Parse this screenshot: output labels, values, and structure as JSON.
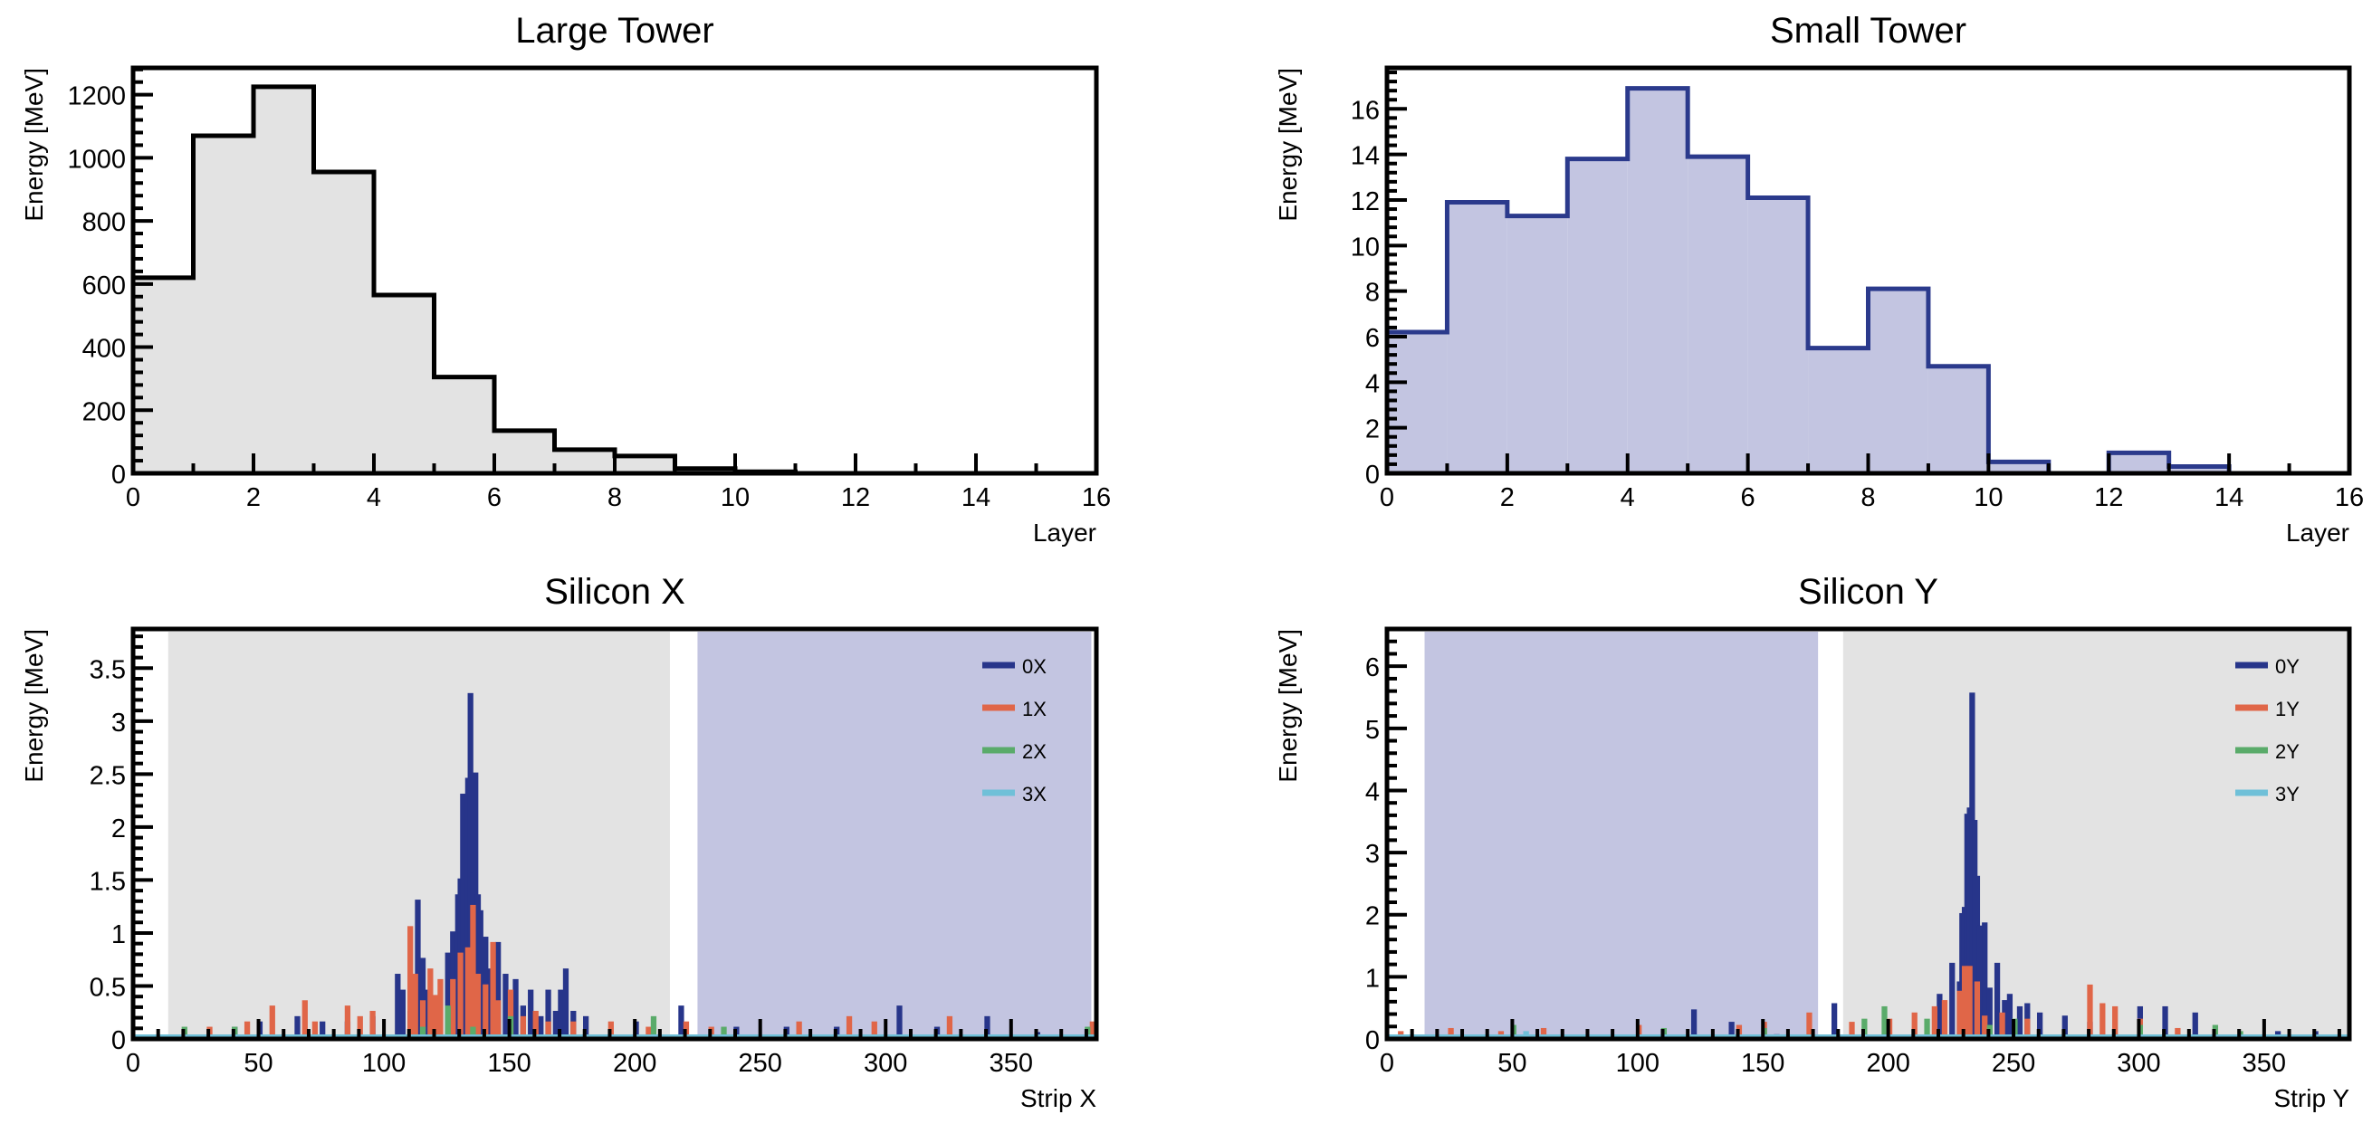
{
  "chart_data": [
    {
      "type": "bar",
      "style": "step-histogram",
      "title": "Large Tower",
      "xlabel": "Layer",
      "ylabel": "Energy [MeV]",
      "xlim": [
        0,
        16
      ],
      "ylim": [
        0,
        1285
      ],
      "xticks": [
        0,
        2,
        4,
        6,
        8,
        10,
        12,
        14,
        16
      ],
      "yticks": [
        0,
        200,
        400,
        600,
        800,
        1000,
        1200
      ],
      "bin_edges_start": [
        0,
        1,
        2,
        3,
        4,
        5,
        6,
        7,
        8,
        9,
        10,
        11,
        12,
        13,
        14,
        15
      ],
      "values": [
        620,
        1070,
        1225,
        955,
        565,
        305,
        135,
        75,
        55,
        15,
        5,
        0,
        0,
        0,
        0,
        0
      ],
      "line_color": "#000000",
      "fill_color": "#e3e3e3"
    },
    {
      "type": "bar",
      "style": "step-histogram",
      "title": "Small Tower",
      "xlabel": "Layer",
      "ylabel": "Energy [MeV]",
      "xlim": [
        0,
        16
      ],
      "ylim": [
        0,
        17.8
      ],
      "xticks": [
        0,
        2,
        4,
        6,
        8,
        10,
        12,
        14,
        16
      ],
      "yticks": [
        0,
        2,
        4,
        6,
        8,
        10,
        12,
        14,
        16
      ],
      "bin_edges_start": [
        0,
        1,
        2,
        3,
        4,
        5,
        6,
        7,
        8,
        9,
        10,
        11,
        12,
        13,
        14,
        15
      ],
      "values": [
        6.2,
        11.9,
        11.3,
        13.8,
        16.9,
        13.9,
        12.1,
        5.5,
        8.1,
        4.7,
        0.5,
        0,
        0.9,
        0.3,
        0,
        0
      ],
      "line_color": "#2b3a8c",
      "fill_color": "#c3c5e1"
    },
    {
      "type": "bar",
      "style": "step-histogram-multi",
      "title": "Silicon X",
      "xlabel": "Strip X",
      "ylabel": "Energy [MeV]",
      "xlim": [
        0,
        384
      ],
      "ylim": [
        0,
        3.87
      ],
      "xticks": [
        0,
        50,
        100,
        150,
        200,
        250,
        300,
        350
      ],
      "yticks": [
        0,
        0.5,
        1,
        1.5,
        2,
        2.5,
        3,
        3.5
      ],
      "ytick_labels": [
        "0",
        "0.5",
        "1",
        "1.5",
        "2",
        "2.5",
        "3",
        "3.5"
      ],
      "bands": [
        {
          "from": 14,
          "to": 214,
          "color": "#e3e3e3"
        },
        {
          "from": 225,
          "to": 382,
          "color": "#c3c5e1"
        }
      ],
      "legend": "top-right",
      "series": [
        {
          "name": "0X",
          "color": "#27358a",
          "points": [
            [
              40,
              0.1
            ],
            [
              50,
              0.15
            ],
            [
              65,
              0.2
            ],
            [
              75,
              0.15
            ],
            [
              85,
              0.15
            ],
            [
              95,
              0.2
            ],
            [
              105,
              0.6
            ],
            [
              107,
              0.45
            ],
            [
              110,
              0.25
            ],
            [
              113,
              1.3
            ],
            [
              115,
              0.75
            ],
            [
              117,
              0.45
            ],
            [
              120,
              0.3
            ],
            [
              125,
              0.8
            ],
            [
              127,
              1.0
            ],
            [
              129,
              1.35
            ],
            [
              130,
              1.5
            ],
            [
              131,
              2.3
            ],
            [
              132,
              1.6
            ],
            [
              133,
              2.45
            ],
            [
              134,
              3.25
            ],
            [
              135,
              1.55
            ],
            [
              136,
              2.5
            ],
            [
              137,
              1.35
            ],
            [
              138,
              1.2
            ],
            [
              140,
              0.95
            ],
            [
              142,
              0.65
            ],
            [
              145,
              0.9
            ],
            [
              148,
              0.6
            ],
            [
              150,
              0.4
            ],
            [
              152,
              0.55
            ],
            [
              155,
              0.3
            ],
            [
              158,
              0.45
            ],
            [
              162,
              0.2
            ],
            [
              165,
              0.45
            ],
            [
              168,
              0.25
            ],
            [
              170,
              0.45
            ],
            [
              172,
              0.65
            ],
            [
              175,
              0.25
            ],
            [
              180,
              0.2
            ],
            [
              200,
              0.15
            ],
            [
              218,
              0.3
            ],
            [
              240,
              0.1
            ],
            [
              260,
              0.1
            ],
            [
              280,
              0.1
            ],
            [
              305,
              0.3
            ],
            [
              320,
              0.1
            ],
            [
              340,
              0.2
            ],
            [
              360,
              0.05
            ]
          ]
        },
        {
          "name": "1X",
          "color": "#e06648",
          "points": [
            [
              20,
              0.05
            ],
            [
              30,
              0.1
            ],
            [
              45,
              0.15
            ],
            [
              55,
              0.3
            ],
            [
              68,
              0.35
            ],
            [
              72,
              0.15
            ],
            [
              85,
              0.3
            ],
            [
              90,
              0.2
            ],
            [
              95,
              0.25
            ],
            [
              110,
              1.05
            ],
            [
              112,
              0.6
            ],
            [
              115,
              0.35
            ],
            [
              118,
              0.65
            ],
            [
              120,
              0.4
            ],
            [
              122,
              0.55
            ],
            [
              127,
              0.55
            ],
            [
              130,
              0.8
            ],
            [
              133,
              0.85
            ],
            [
              135,
              1.25
            ],
            [
              137,
              0.6
            ],
            [
              140,
              0.5
            ],
            [
              143,
              0.9
            ],
            [
              145,
              0.35
            ],
            [
              150,
              0.45
            ],
            [
              155,
              0.2
            ],
            [
              160,
              0.25
            ],
            [
              165,
              0.15
            ],
            [
              175,
              0.15
            ],
            [
              190,
              0.15
            ],
            [
              205,
              0.1
            ],
            [
              220,
              0.15
            ],
            [
              230,
              0.1
            ],
            [
              265,
              0.15
            ],
            [
              285,
              0.2
            ],
            [
              295,
              0.15
            ],
            [
              325,
              0.2
            ],
            [
              382,
              0.15
            ]
          ]
        },
        {
          "name": "2X",
          "color": "#5aab6a",
          "points": [
            [
              20,
              0.1
            ],
            [
              40,
              0.1
            ],
            [
              115,
              0.1
            ],
            [
              125,
              0.3
            ],
            [
              135,
              0.1
            ],
            [
              150,
              0.2
            ],
            [
              207,
              0.2
            ],
            [
              235,
              0.1
            ],
            [
              380,
              0.1
            ]
          ]
        },
        {
          "name": "3X",
          "color": "#6fc0d8",
          "points": []
        }
      ]
    },
    {
      "type": "bar",
      "style": "step-histogram-multi",
      "title": "Silicon Y",
      "xlabel": "Strip Y",
      "ylabel": "Energy [MeV]",
      "xlim": [
        0,
        384
      ],
      "ylim": [
        0,
        6.6
      ],
      "xticks": [
        0,
        50,
        100,
        150,
        200,
        250,
        300,
        350
      ],
      "yticks": [
        0,
        1,
        2,
        3,
        4,
        5,
        6
      ],
      "ytick_labels": [
        "0",
        "1",
        "2",
        "3",
        "4",
        "5",
        "6"
      ],
      "bands": [
        {
          "from": 15,
          "to": 172,
          "color": "#c3c5e1"
        },
        {
          "from": 182,
          "to": 384,
          "color": "#e3e3e3"
        }
      ],
      "legend": "top-right",
      "series": [
        {
          "name": "0Y",
          "color": "#27358a",
          "points": [
            [
              122,
              0.45
            ],
            [
              137,
              0.25
            ],
            [
              155,
              0.05
            ],
            [
              178,
              0.55
            ],
            [
              220,
              0.7
            ],
            [
              225,
              1.2
            ],
            [
              228,
              0.9
            ],
            [
              229,
              2.0
            ],
            [
              230,
              2.1
            ],
            [
              231,
              3.6
            ],
            [
              232,
              3.7
            ],
            [
              233,
              5.55
            ],
            [
              234,
              3.5
            ],
            [
              235,
              2.6
            ],
            [
              236,
              1.8
            ],
            [
              238,
              1.85
            ],
            [
              240,
              0.8
            ],
            [
              243,
              1.2
            ],
            [
              246,
              0.6
            ],
            [
              248,
              0.7
            ],
            [
              252,
              0.5
            ],
            [
              255,
              0.55
            ],
            [
              260,
              0.4
            ],
            [
              270,
              0.35
            ],
            [
              280,
              0.25
            ],
            [
              300,
              0.5
            ],
            [
              310,
              0.5
            ],
            [
              322,
              0.4
            ],
            [
              355,
              0.1
            ],
            [
              370,
              0.1
            ]
          ]
        },
        {
          "name": "1Y",
          "color": "#e06648",
          "points": [
            [
              5,
              0.1
            ],
            [
              25,
              0.15
            ],
            [
              45,
              0.1
            ],
            [
              62,
              0.15
            ],
            [
              100,
              0.2
            ],
            [
              140,
              0.2
            ],
            [
              150,
              0.25
            ],
            [
              168,
              0.4
            ],
            [
              185,
              0.25
            ],
            [
              200,
              0.3
            ],
            [
              210,
              0.4
            ],
            [
              218,
              0.5
            ],
            [
              222,
              0.6
            ],
            [
              228,
              0.75
            ],
            [
              230,
              1.15
            ],
            [
              232,
              1.15
            ],
            [
              235,
              0.9
            ],
            [
              238,
              0.35
            ],
            [
              245,
              0.4
            ],
            [
              255,
              0.3
            ],
            [
              280,
              0.85
            ],
            [
              285,
              0.55
            ],
            [
              290,
              0.5
            ],
            [
              300,
              0.3
            ],
            [
              315,
              0.15
            ]
          ]
        },
        {
          "name": "2Y",
          "color": "#5aab6a",
          "points": [
            [
              50,
              0.2
            ],
            [
              110,
              0.15
            ],
            [
              150,
              0.15
            ],
            [
              190,
              0.3
            ],
            [
              198,
              0.5
            ],
            [
              215,
              0.3
            ],
            [
              240,
              0.2
            ],
            [
              250,
              0.3
            ],
            [
              300,
              0.2
            ],
            [
              330,
              0.2
            ],
            [
              340,
              0.1
            ]
          ]
        },
        {
          "name": "3Y",
          "color": "#6fc0d8",
          "points": [
            [
              55,
              0.1
            ]
          ]
        }
      ]
    }
  ]
}
